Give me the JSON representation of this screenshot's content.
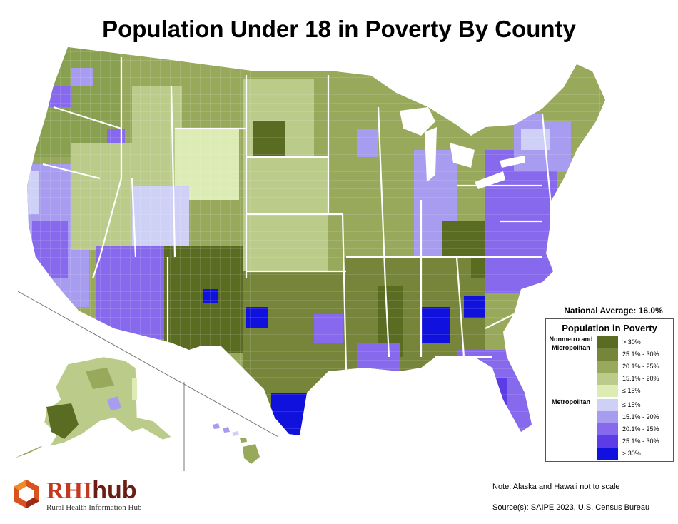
{
  "title": "Population Under 18 in Poverty By County",
  "national_average": "National Average: 16.0%",
  "legend": {
    "title": "Population in Poverty",
    "groups": [
      {
        "label": "Nonmetro and Micropolitan",
        "items": [
          {
            "label": "> 30%",
            "color": "#5a6b22"
          },
          {
            "label": "25.1% - 30%",
            "color": "#76853a"
          },
          {
            "label": "20.1% - 25%",
            "color": "#98a95c"
          },
          {
            "label": "15.1% - 20%",
            "color": "#bbcb8a"
          },
          {
            "label": "≤ 15%",
            "color": "#dcecb4"
          }
        ]
      },
      {
        "label": "Metropolitan",
        "items": [
          {
            "label": "≤ 15%",
            "color": "#cfd0f6"
          },
          {
            "label": "15.1% - 20%",
            "color": "#a79cf0"
          },
          {
            "label": "20.1% - 25%",
            "color": "#8669ec"
          },
          {
            "label": "25.1% - 30%",
            "color": "#5b3ce6"
          },
          {
            "label": "> 30%",
            "color": "#1111dd"
          }
        ]
      }
    ]
  },
  "note": "Note: Alaska and Hawaii not to scale",
  "source": "Source(s): SAIPE 2023, U.S. Census Bureau",
  "logo": {
    "rhi": "RHI",
    "hub": "hub",
    "subtitle": "Rural Health Information Hub"
  },
  "map_regions": {
    "contiguous_us": "contiguous-us",
    "alaska": "alaska",
    "hawaii": "hawaii"
  }
}
